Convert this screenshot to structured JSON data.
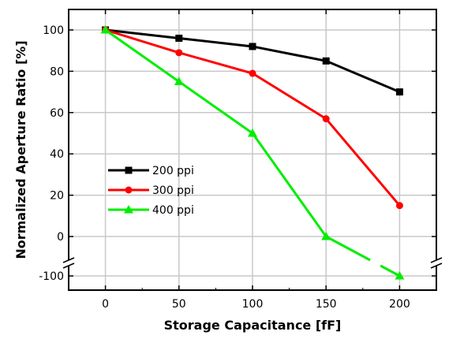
{
  "chart_data": {
    "type": "line",
    "xlabel": "Storage Capacitance [fF]",
    "ylabel": "Normalized Aperture Ratio  [%]",
    "x": [
      0,
      50,
      100,
      150,
      200
    ],
    "xticks": [
      0,
      50,
      100,
      150,
      200
    ],
    "xlim": [
      -25,
      225
    ],
    "yticks": [
      100,
      80,
      60,
      40,
      20,
      0,
      -100
    ],
    "axis_break": {
      "between": [
        0,
        -100
      ]
    },
    "grid": true,
    "legend_position": "middle-left",
    "series": [
      {
        "name": "200 ppi",
        "color": "#000000",
        "marker": "square",
        "values": [
          100,
          96,
          92,
          85,
          70
        ]
      },
      {
        "name": "300 ppi",
        "color": "#ff0000",
        "marker": "circle",
        "values": [
          100,
          89,
          79,
          57,
          15
        ]
      },
      {
        "name": "400 ppi",
        "color": "#00ee00",
        "marker": "triangle",
        "values": [
          100,
          75,
          50,
          0,
          -100
        ]
      }
    ]
  }
}
